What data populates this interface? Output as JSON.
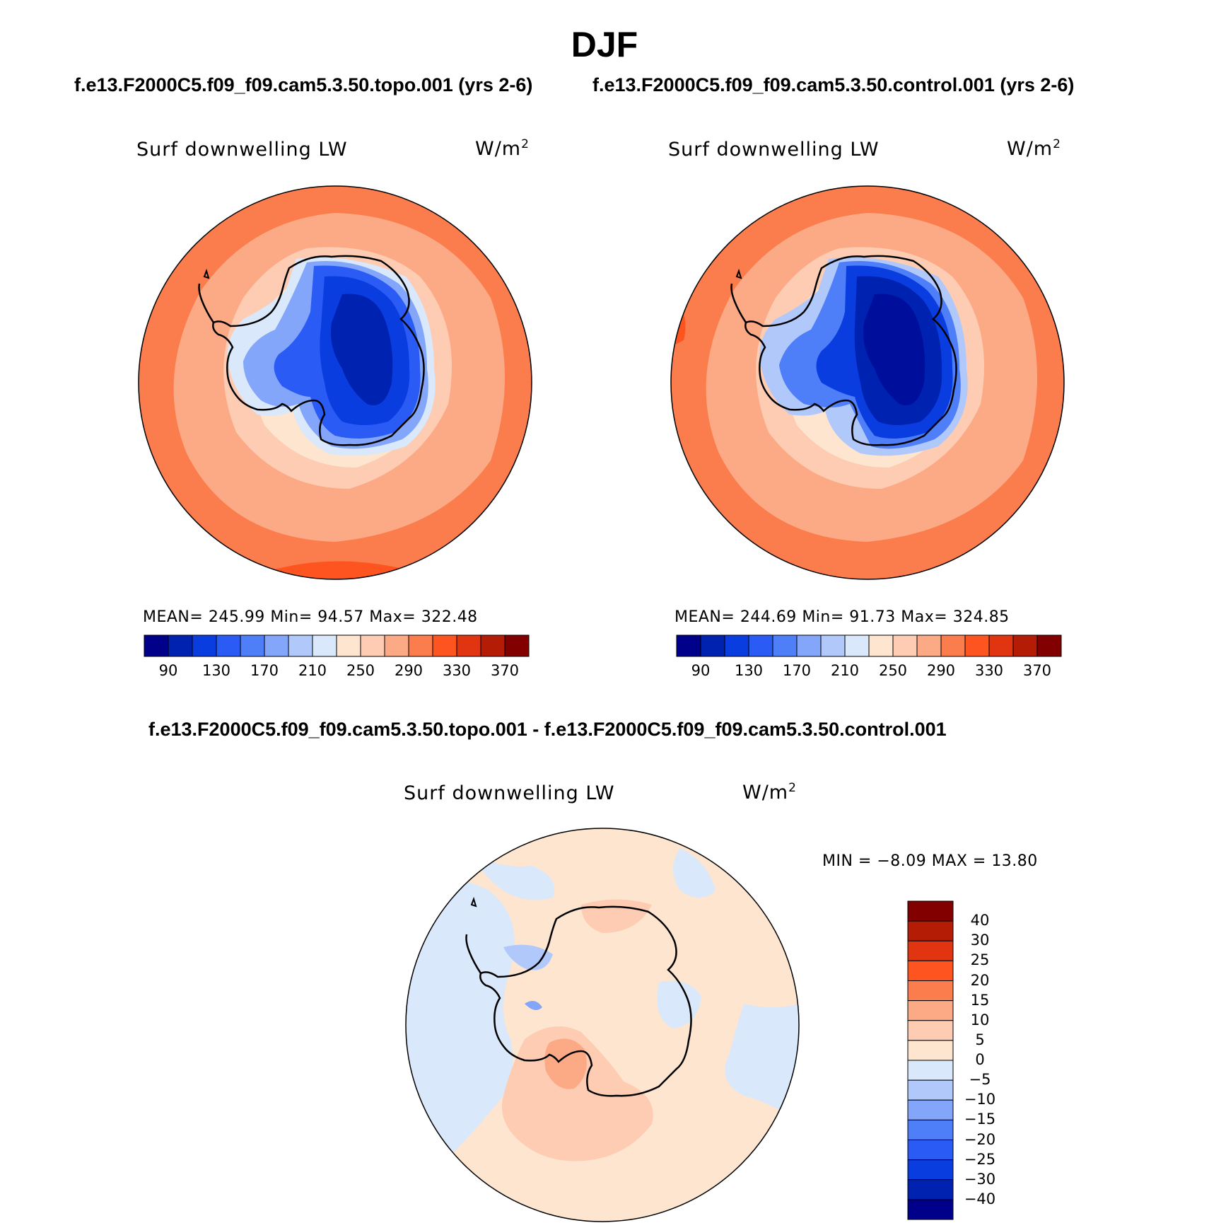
{
  "page_title": "DJF",
  "panel_titles": {
    "left": "f.e13.F2000C5.f09_f09.cam5.3.50.topo.001 (yrs 2-6)",
    "right": "f.e13.F2000C5.f09_f09.cam5.3.50.control.001 (yrs 2-6)",
    "bottom": "f.e13.F2000C5.f09_f09.cam5.3.50.topo.001 - f.e13.F2000C5.f09_f09.cam5.3.50.control.001"
  },
  "chart_data": [
    {
      "type": "heatmap",
      "projection": "south-polar-stereographic",
      "variable": "Surf downwelling LW",
      "units_base": "W/m",
      "units_sup": "2",
      "stats": {
        "mean_label": "MEAN=",
        "mean": "245.99",
        "min_label": "Min=",
        "min": "94.57",
        "max_label": "Max=",
        "max": "322.48"
      },
      "colorbar_levels": [
        90,
        130,
        170,
        210,
        250,
        290,
        330,
        370
      ],
      "colorbar_colors": [
        "#00008a",
        "#0022b0",
        "#0a3de0",
        "#2a5cf5",
        "#4e7ef8",
        "#83a6fb",
        "#b1c8fb",
        "#d9e8fb",
        "#fde5d0",
        "#fdccb3",
        "#fcaa85",
        "#fb7c4c",
        "#fd5420",
        "#e03510",
        "#b41c05",
        "#820000"
      ]
    },
    {
      "type": "heatmap",
      "projection": "south-polar-stereographic",
      "variable": "Surf downwelling LW",
      "units_base": "W/m",
      "units_sup": "2",
      "stats": {
        "mean_label": "MEAN=",
        "mean": "244.69",
        "min_label": "Min=",
        "min": "91.73",
        "max_label": "Max=",
        "max": "324.85"
      },
      "colorbar_levels": [
        90,
        130,
        170,
        210,
        250,
        290,
        330,
        370
      ],
      "colorbar_colors": [
        "#00008a",
        "#0022b0",
        "#0a3de0",
        "#2a5cf5",
        "#4e7ef8",
        "#83a6fb",
        "#b1c8fb",
        "#d9e8fb",
        "#fde5d0",
        "#fdccb3",
        "#fcaa85",
        "#fb7c4c",
        "#fd5420",
        "#e03510",
        "#b41c05",
        "#820000"
      ]
    },
    {
      "type": "heatmap",
      "projection": "south-polar-stereographic",
      "variable": "Surf downwelling LW",
      "units_base": "W/m",
      "units_sup": "2",
      "stats": {
        "min_label": "MIN =",
        "min": "−8.09",
        "max_label": "MAX =",
        "max": "13.80"
      },
      "colorbar_levels": [
        "40",
        "30",
        "25",
        "20",
        "15",
        "10",
        "5",
        "0",
        "−5",
        "−10",
        "−15",
        "−20",
        "−25",
        "−30",
        "−40"
      ],
      "colorbar_colors": [
        "#820000",
        "#b41c05",
        "#e03510",
        "#fd5420",
        "#fb7c4c",
        "#fcaa85",
        "#fdccb3",
        "#fde5d0",
        "#d9e8fb",
        "#b1c8fb",
        "#83a6fb",
        "#4e7ef8",
        "#2a5cf5",
        "#0a3de0",
        "#0022b0",
        "#00008a"
      ]
    }
  ]
}
